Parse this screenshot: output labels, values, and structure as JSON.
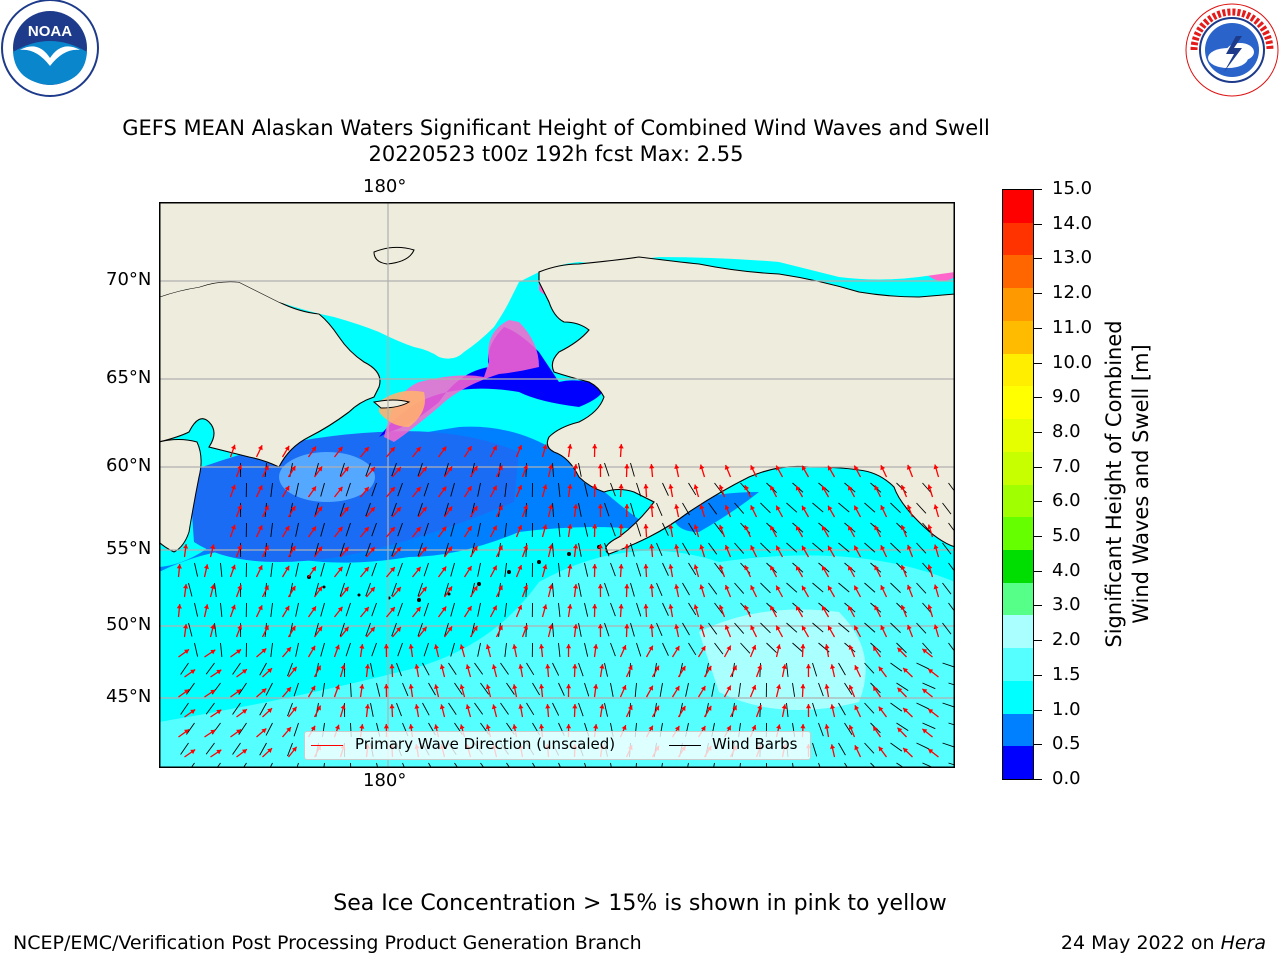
{
  "header": {
    "title_line1": "GEFS MEAN Alaskan Waters Significant Height of Combined Wind Waves and Swell",
    "title_line2": "20220523 t00z 192h fcst   Max: 2.55",
    "left_logo": "NOAA",
    "left_logo_ring_text": "NATIONAL OCEANIC AND ATMOSPHERIC ADMINISTRATION · U.S. DEPARTMENT OF COMMERCE",
    "right_logo_ring_text": "NATIONAL WEATHER SERVICE"
  },
  "map": {
    "lon_label_top": "180°",
    "lon_label_bottom": "180°",
    "lat_labels": [
      "70°N",
      "65°N",
      "60°N",
      "55°N",
      "50°N",
      "45°N"
    ],
    "colors": {
      "land": "#eeecdc",
      "ocean_lo": "#00ffff",
      "ocean_mid": "#0080ff",
      "ocean_deep": "#0000ff",
      "ice": "#ff66cc",
      "arrow": "#ff0000",
      "barb": "#000000"
    }
  },
  "legend": {
    "primary_label": "Primary Wave Direction (unscaled)",
    "barb_label": "Wind Barbs"
  },
  "colorbar": {
    "label_line1": "Significant Height of Combined",
    "label_line2": "Wind Waves and Swell [m]",
    "ticks": [
      "15.0",
      "14.0",
      "13.0",
      "12.0",
      "11.0",
      "10.0",
      "9.0",
      "8.0",
      "7.0",
      "6.0",
      "5.0",
      "4.0",
      "3.0",
      "2.0",
      "1.5",
      "1.0",
      "0.5",
      "0.0"
    ],
    "colors_top_to_bottom": [
      "#ff0000",
      "#ff3300",
      "#ff6600",
      "#ff9900",
      "#ffbb00",
      "#ffee00",
      "#ffff00",
      "#e6ff00",
      "#c8ff00",
      "#a0ff00",
      "#66ff00",
      "#00dd00",
      "#55ff88",
      "#aaffff",
      "#55ffff",
      "#00ffff",
      "#0080ff",
      "#0000ff"
    ]
  },
  "footer": {
    "sea_ice_note": "Sea Ice Concentration > 15% is shown in pink to yellow",
    "branch": "NCEP/EMC/Verification Post Processing Product Generation Branch",
    "date_prefix": "24 May 2022 on ",
    "machine": "Hera"
  }
}
